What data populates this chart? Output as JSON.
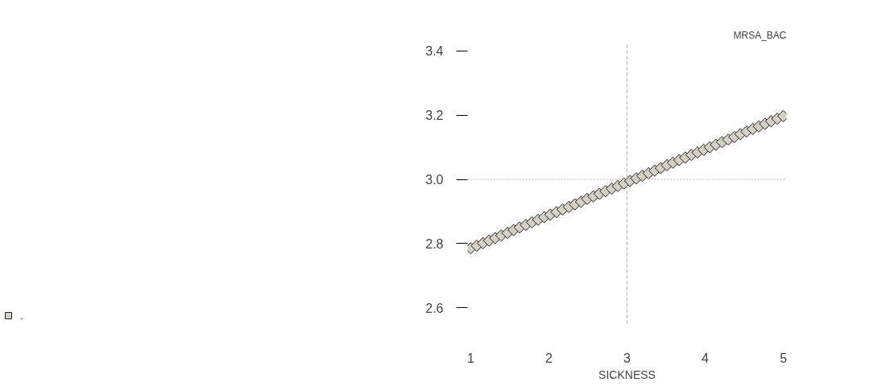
{
  "chart_data": {
    "type": "scatter",
    "title": "MRSA_BAC",
    "xlabel": "SICKNESS",
    "x": [
      1.0,
      1.078,
      1.157,
      1.235,
      1.314,
      1.392,
      1.471,
      1.549,
      1.627,
      1.706,
      1.784,
      1.863,
      1.941,
      2.02,
      2.098,
      2.176,
      2.255,
      2.333,
      2.412,
      2.49,
      2.569,
      2.647,
      2.725,
      2.804,
      2.882,
      2.961,
      3.039,
      3.118,
      3.196,
      3.275,
      3.353,
      3.431,
      3.51,
      3.588,
      3.667,
      3.745,
      3.824,
      3.902,
      3.98,
      4.059,
      4.137,
      4.216,
      4.294,
      4.373,
      4.451,
      4.529,
      4.608,
      4.686,
      4.765,
      4.843,
      4.922,
      5.0
    ],
    "series": [
      {
        "name": ".",
        "color": "#d4d0c8",
        "values": [
          2.785,
          2.793,
          2.801,
          2.809,
          2.817,
          2.825,
          2.833,
          2.842,
          2.85,
          2.858,
          2.866,
          2.874,
          2.882,
          2.89,
          2.898,
          2.906,
          2.914,
          2.922,
          2.93,
          2.939,
          2.947,
          2.955,
          2.963,
          2.971,
          2.979,
          2.987,
          2.995,
          3.003,
          3.011,
          3.019,
          3.027,
          3.035,
          3.044,
          3.052,
          3.06,
          3.068,
          3.076,
          3.084,
          3.092,
          3.1,
          3.108,
          3.116,
          3.124,
          3.132,
          3.141,
          3.149,
          3.157,
          3.165,
          3.173,
          3.181,
          3.189,
          3.197
        ]
      }
    ],
    "xlim": [
      0.96,
      5.04
    ],
    "xticks": [
      1,
      2,
      3,
      4,
      5
    ],
    "ylim": [
      2.55,
      3.42
    ],
    "yticks": [
      2.6,
      2.8,
      {
        "value": 3,
        "label": "3.0"
      },
      3.2,
      3.4
    ],
    "ref_lines": [
      {
        "axis": "x",
        "value": 3,
        "label": null,
        "color": "#b0ad9f",
        "line_style": "dashed"
      },
      {
        "axis": "y",
        "value": 3,
        "label": null,
        "color": "#b0ad9f",
        "line_style": "dotted"
      }
    ],
    "grid": false,
    "legend": "bottom left",
    "marker": "diamond"
  }
}
